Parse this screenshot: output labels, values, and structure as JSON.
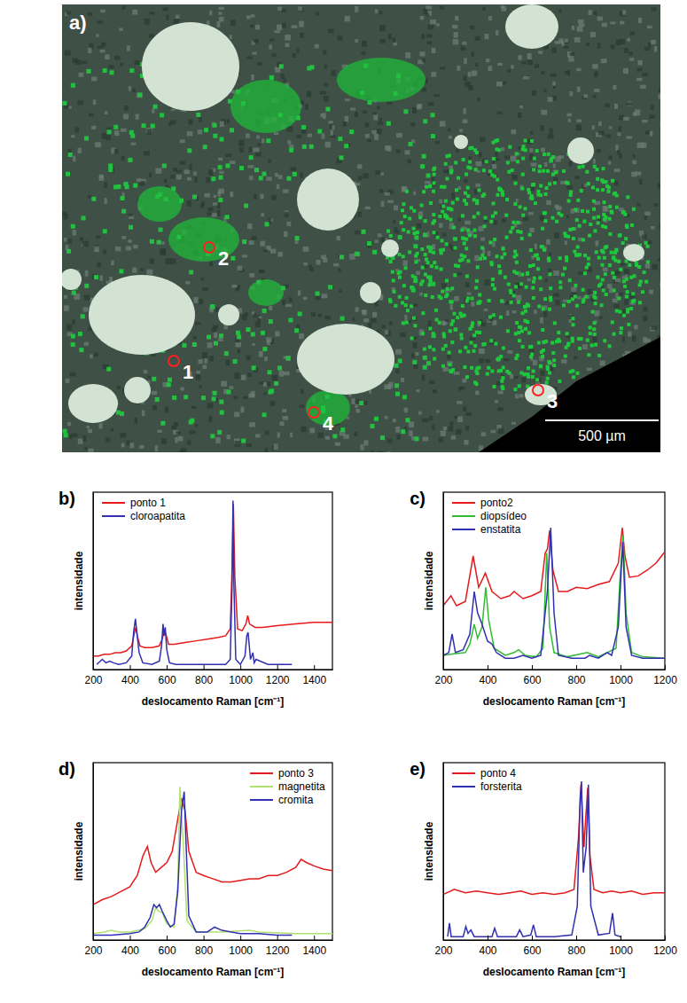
{
  "micrograph": {
    "label": "a)",
    "points": [
      "1",
      "2",
      "3",
      "4"
    ],
    "scale_bar": "500 µm"
  },
  "chart_data": [
    {
      "type": "line",
      "title": "b)",
      "xlabel": "deslocamento Raman [cm⁻¹]",
      "ylabel": "intensidade",
      "xlim": [
        200,
        1500
      ],
      "xticks": [
        200,
        400,
        600,
        800,
        1000,
        1200,
        1400
      ],
      "ylim": [
        0,
        1.05
      ],
      "tick_labels": "x",
      "grid": false,
      "legend": "upper left",
      "series": [
        {
          "name": "ponto 1",
          "color": "#e41a1c",
          "x": [
            200,
            230,
            260,
            290,
            320,
            350,
            380,
            410,
            425,
            432,
            440,
            455,
            480,
            520,
            560,
            575,
            588,
            598,
            610,
            640,
            700,
            760,
            820,
            880,
            920,
            945,
            955,
            962,
            970,
            985,
            1010,
            1030,
            1040,
            1050,
            1080,
            1120,
            1200,
            1300,
            1400,
            1500
          ],
          "values": [
            0.08,
            0.08,
            0.09,
            0.09,
            0.1,
            0.1,
            0.11,
            0.14,
            0.22,
            0.25,
            0.2,
            0.14,
            0.13,
            0.13,
            0.14,
            0.18,
            0.23,
            0.2,
            0.15,
            0.15,
            0.16,
            0.17,
            0.18,
            0.19,
            0.2,
            0.24,
            0.6,
            0.98,
            0.55,
            0.24,
            0.23,
            0.27,
            0.32,
            0.27,
            0.25,
            0.25,
            0.26,
            0.27,
            0.28,
            0.28
          ]
        },
        {
          "name": "cloroapatita",
          "color": "#3030b0",
          "x": [
            220,
            250,
            270,
            290,
            310,
            340,
            380,
            410,
            420,
            430,
            440,
            450,
            470,
            520,
            560,
            572,
            580,
            586,
            592,
            600,
            615,
            650,
            750,
            850,
            920,
            945,
            955,
            960,
            965,
            975,
            1000,
            1025,
            1035,
            1042,
            1055,
            1068,
            1075,
            1085,
            1150,
            1280
          ],
          "values": [
            0.03,
            0.06,
            0.04,
            0.05,
            0.04,
            0.03,
            0.04,
            0.08,
            0.22,
            0.3,
            0.2,
            0.1,
            0.04,
            0.03,
            0.05,
            0.14,
            0.27,
            0.2,
            0.25,
            0.12,
            0.04,
            0.03,
            0.03,
            0.03,
            0.03,
            0.06,
            0.5,
            1.0,
            0.5,
            0.06,
            0.03,
            0.08,
            0.2,
            0.22,
            0.06,
            0.1,
            0.04,
            0.06,
            0.03,
            0.03
          ]
        }
      ]
    },
    {
      "type": "line",
      "title": "c)",
      "xlabel": "deslocamento Raman [cm⁻¹]",
      "ylabel": "intensidade",
      "xlim": [
        200,
        1200
      ],
      "xticks": [
        200,
        400,
        600,
        800,
        1000,
        1200
      ],
      "ylim": [
        0,
        1.25
      ],
      "tick_labels": "x",
      "grid": false,
      "legend": "upper left",
      "series": [
        {
          "name": "ponto2",
          "color": "#e41a1c",
          "x": [
            200,
            235,
            260,
            300,
            335,
            360,
            390,
            420,
            460,
            500,
            520,
            560,
            600,
            640,
            660,
            670,
            680,
            695,
            720,
            760,
            800,
            850,
            900,
            950,
            990,
            1008,
            1020,
            1040,
            1080,
            1120,
            1160,
            1200
          ],
          "values": [
            0.45,
            0.52,
            0.45,
            0.48,
            0.8,
            0.58,
            0.68,
            0.55,
            0.5,
            0.52,
            0.55,
            0.5,
            0.52,
            0.55,
            0.82,
            0.85,
            0.98,
            0.7,
            0.55,
            0.55,
            0.58,
            0.57,
            0.6,
            0.62,
            0.75,
            1.0,
            0.8,
            0.65,
            0.66,
            0.7,
            0.75,
            0.83
          ]
        },
        {
          "name": "diopsídeo",
          "color": "#33bb33",
          "x": [
            200,
            240,
            300,
            320,
            340,
            355,
            375,
            392,
            405,
            430,
            480,
            520,
            540,
            570,
            620,
            650,
            667,
            680,
            700,
            760,
            850,
            900,
            980,
            1000,
            1012,
            1025,
            1050,
            1100,
            1200
          ],
          "values": [
            0.1,
            0.11,
            0.12,
            0.18,
            0.32,
            0.22,
            0.3,
            0.58,
            0.35,
            0.15,
            0.1,
            0.12,
            0.14,
            0.1,
            0.09,
            0.15,
            0.82,
            0.3,
            0.12,
            0.09,
            0.12,
            0.09,
            0.15,
            0.7,
            0.95,
            0.4,
            0.12,
            0.09,
            0.08
          ]
        },
        {
          "name": "enstatita",
          "color": "#3030b0",
          "x": [
            200,
            225,
            240,
            255,
            290,
            320,
            340,
            355,
            375,
            400,
            420,
            440,
            480,
            520,
            560,
            600,
            640,
            660,
            670,
            685,
            700,
            720,
            780,
            840,
            860,
            900,
            940,
            960,
            990,
            1010,
            1025,
            1050,
            1100,
            1200
          ],
          "values": [
            0.1,
            0.12,
            0.25,
            0.12,
            0.14,
            0.25,
            0.55,
            0.4,
            0.32,
            0.2,
            0.18,
            0.12,
            0.08,
            0.08,
            0.1,
            0.08,
            0.1,
            0.4,
            0.55,
            1.0,
            0.4,
            0.1,
            0.08,
            0.08,
            0.1,
            0.08,
            0.12,
            0.1,
            0.3,
            0.9,
            0.3,
            0.1,
            0.08,
            0.08
          ]
        }
      ]
    },
    {
      "type": "line",
      "title": "d)",
      "xlabel": "deslocamento Raman [cm⁻¹]",
      "ylabel": "intensidade",
      "xlim": [
        200,
        1500
      ],
      "xticks": [
        200,
        400,
        600,
        800,
        1000,
        1200,
        1400
      ],
      "ylim": [
        0,
        1.1
      ],
      "tick_labels": "x",
      "grid": false,
      "legend": "upper right",
      "series": [
        {
          "name": "ponto 3",
          "color": "#e41a1c",
          "x": [
            200,
            250,
            300,
            350,
            400,
            440,
            470,
            495,
            515,
            540,
            570,
            600,
            630,
            660,
            680,
            700,
            720,
            760,
            800,
            850,
            900,
            950,
            1000,
            1050,
            1100,
            1150,
            1200,
            1250,
            1300,
            1330,
            1360,
            1400,
            1450,
            1500
          ],
          "values": [
            0.22,
            0.25,
            0.27,
            0.3,
            0.33,
            0.4,
            0.52,
            0.58,
            0.48,
            0.42,
            0.45,
            0.48,
            0.55,
            0.75,
            0.88,
            0.8,
            0.55,
            0.42,
            0.4,
            0.38,
            0.36,
            0.36,
            0.37,
            0.38,
            0.38,
            0.4,
            0.4,
            0.42,
            0.45,
            0.5,
            0.48,
            0.46,
            0.44,
            0.43
          ]
        },
        {
          "name": "magnetita",
          "color": "#b0e070",
          "x": [
            200,
            260,
            300,
            340,
            400,
            480,
            520,
            540,
            555,
            575,
            600,
            640,
            660,
            672,
            690,
            710,
            760,
            900,
            1050,
            1100,
            1300,
            1500
          ],
          "values": [
            0.04,
            0.05,
            0.06,
            0.05,
            0.05,
            0.07,
            0.12,
            0.2,
            0.18,
            0.17,
            0.1,
            0.08,
            0.35,
            0.95,
            0.6,
            0.12,
            0.05,
            0.05,
            0.06,
            0.05,
            0.04,
            0.04
          ]
        },
        {
          "name": "cromita",
          "color": "#3030b0",
          "x": [
            200,
            300,
            400,
            450,
            480,
            510,
            530,
            545,
            560,
            575,
            600,
            620,
            640,
            660,
            680,
            695,
            705,
            720,
            760,
            820,
            860,
            900,
            1000,
            1100,
            1200,
            1280
          ],
          "values": [
            0.03,
            0.03,
            0.04,
            0.05,
            0.08,
            0.14,
            0.22,
            0.2,
            0.22,
            0.18,
            0.12,
            0.08,
            0.1,
            0.3,
            0.8,
            0.92,
            0.6,
            0.15,
            0.05,
            0.05,
            0.08,
            0.06,
            0.04,
            0.04,
            0.03,
            0.03
          ]
        }
      ]
    },
    {
      "type": "line",
      "title": "e)",
      "xlabel": "deslocamento Raman [cm⁻¹]",
      "ylabel": "intensidade",
      "xlim": [
        200,
        1200
      ],
      "xticks": [
        200,
        400,
        600,
        800,
        1000,
        1200
      ],
      "ylim": [
        0,
        1.05
      ],
      "tick_labels": "x",
      "grid": false,
      "legend": "upper left",
      "series": [
        {
          "name": "ponto 4",
          "color": "#e41a1c",
          "x": [
            200,
            250,
            300,
            350,
            400,
            450,
            500,
            550,
            600,
            650,
            700,
            750,
            790,
            810,
            822,
            835,
            842,
            852,
            862,
            880,
            920,
            960,
            1000,
            1050,
            1100,
            1150,
            1200
          ],
          "values": [
            0.27,
            0.3,
            0.28,
            0.29,
            0.28,
            0.27,
            0.28,
            0.29,
            0.27,
            0.28,
            0.27,
            0.28,
            0.3,
            0.6,
            0.92,
            0.55,
            0.7,
            0.9,
            0.5,
            0.3,
            0.28,
            0.29,
            0.28,
            0.29,
            0.27,
            0.28,
            0.28
          ]
        },
        {
          "name": "forsterita",
          "color": "#3030b0",
          "x": [
            220,
            228,
            236,
            290,
            302,
            312,
            325,
            340,
            420,
            432,
            445,
            530,
            545,
            560,
            595,
            607,
            620,
            700,
            780,
            805,
            818,
            824,
            832,
            845,
            855,
            866,
            900,
            950,
            964,
            975,
            1000
          ],
          "values": [
            0.02,
            0.1,
            0.02,
            0.02,
            0.08,
            0.04,
            0.06,
            0.02,
            0.02,
            0.07,
            0.02,
            0.02,
            0.06,
            0.02,
            0.03,
            0.09,
            0.02,
            0.02,
            0.03,
            0.2,
            0.85,
            0.94,
            0.4,
            0.55,
            0.92,
            0.2,
            0.03,
            0.04,
            0.16,
            0.03,
            0.02
          ]
        }
      ]
    }
  ]
}
